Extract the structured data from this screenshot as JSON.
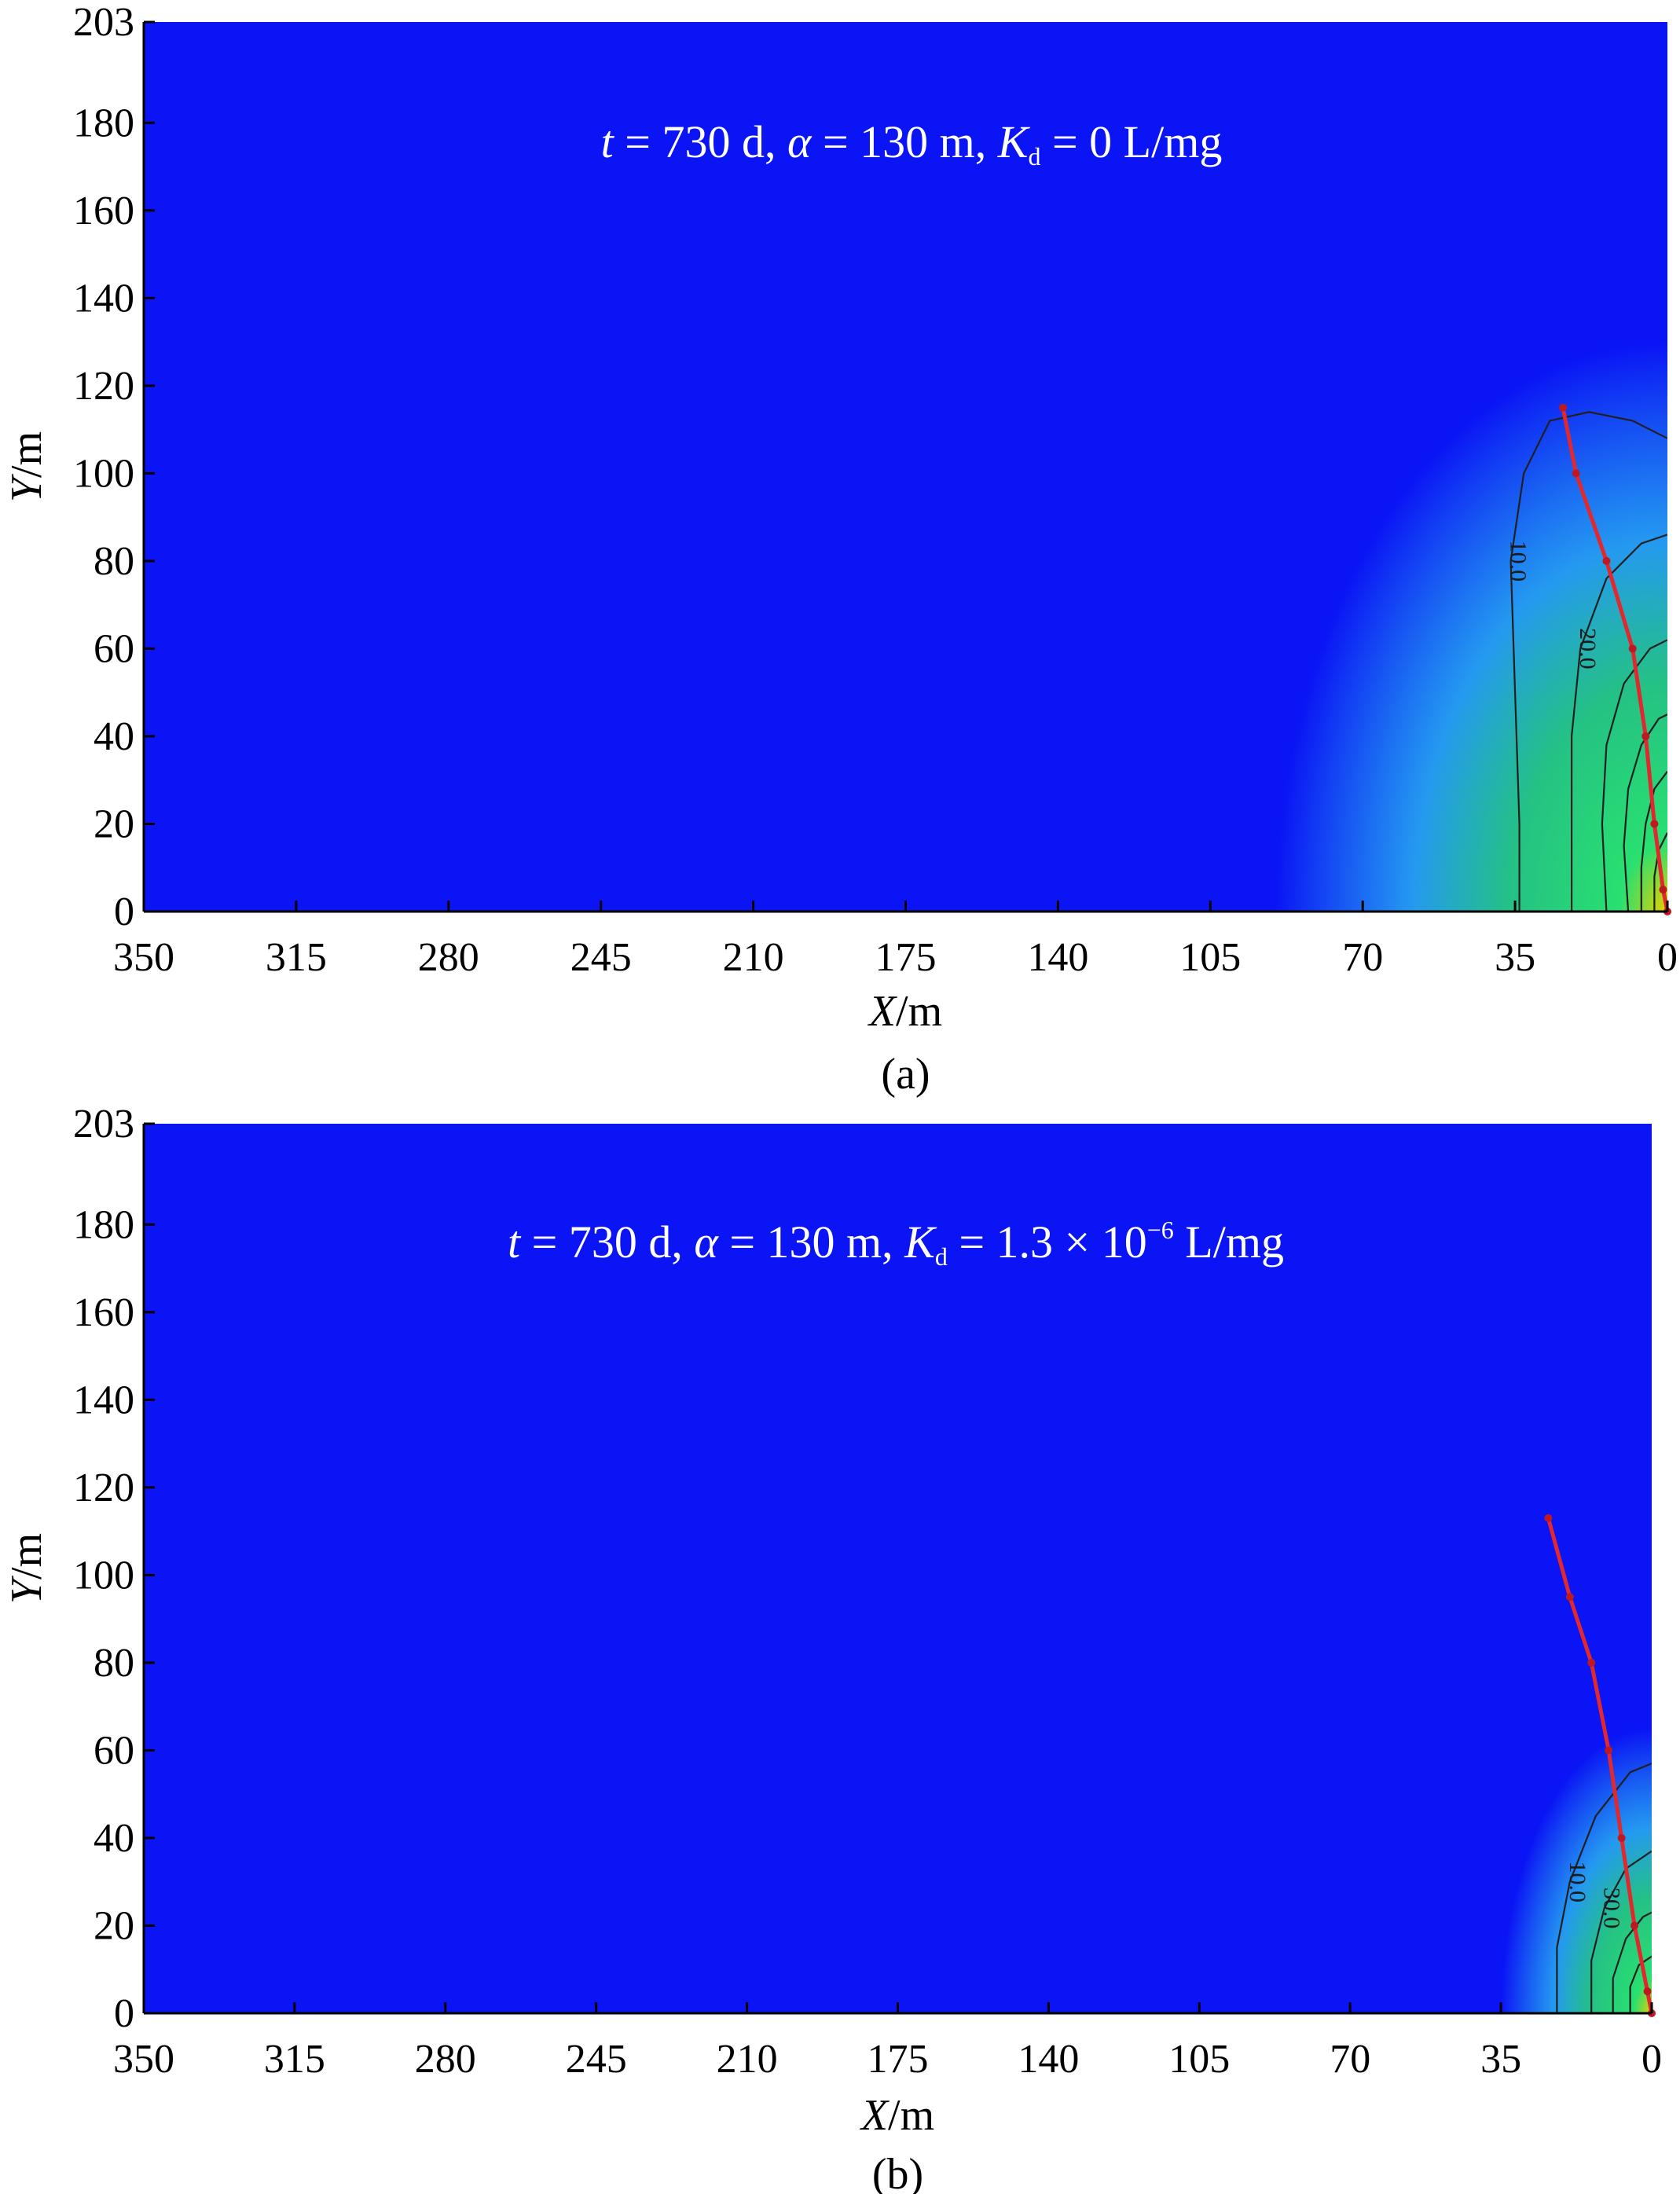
{
  "chart_data": [
    {
      "type": "heatmap",
      "panel_label": "(a)",
      "annotation": {
        "t_var": "t",
        "t_text": " = 730 d, ",
        "alpha_var": "α",
        "alpha_text": " = 130 m, ",
        "k_var": "K",
        "k_sub": "d",
        "k_text": " = 0 L/mg",
        "k_sup": ""
      },
      "xlabel": {
        "var": "X",
        "unit": "/m"
      },
      "ylabel": {
        "var": "Y",
        "unit": "/m"
      },
      "x_ticks": [
        "350",
        "315",
        "280",
        "245",
        "210",
        "175",
        "140",
        "105",
        "70",
        "35",
        "0"
      ],
      "y_ticks": [
        "0",
        "20",
        "40",
        "60",
        "80",
        "100",
        "120",
        "140",
        "160",
        "180",
        "203"
      ],
      "xlim": [
        350,
        0
      ],
      "ylim": [
        0,
        203
      ],
      "colors": {
        "background": "#0a14f5",
        "plume_mid": "#27a8f0",
        "plume_high": "#29e070",
        "plume_peak": "#e8d000",
        "path": "#e0282e"
      },
      "contour_labels": [
        "10.0",
        "10.0",
        "20.0",
        "10.0"
      ],
      "contours": [
        {
          "label": "10.0",
          "points": [
            [
              34,
              0
            ],
            [
              34,
              20
            ],
            [
              35,
              50
            ],
            [
              36,
              80
            ],
            [
              33,
              100
            ],
            [
              27,
              112
            ],
            [
              18,
              114
            ],
            [
              8,
              112
            ],
            [
              0,
              108
            ]
          ]
        },
        {
          "label": "20.0",
          "points": [
            [
              22,
              0
            ],
            [
              22,
              20
            ],
            [
              22,
              40
            ],
            [
              20,
              60
            ],
            [
              14,
              76
            ],
            [
              6,
              84
            ],
            [
              0,
              86
            ]
          ]
        },
        {
          "label": "",
          "points": [
            [
              14,
              0
            ],
            [
              15,
              20
            ],
            [
              14,
              38
            ],
            [
              10,
              52
            ],
            [
              4,
              60
            ],
            [
              0,
              62
            ]
          ]
        },
        {
          "label": "",
          "points": [
            [
              9,
              0
            ],
            [
              10,
              15
            ],
            [
              9,
              28
            ],
            [
              6,
              38
            ],
            [
              2,
              44
            ],
            [
              0,
              45
            ]
          ]
        },
        {
          "label": "",
          "points": [
            [
              6,
              0
            ],
            [
              6,
              10
            ],
            [
              5,
              20
            ],
            [
              3,
              28
            ],
            [
              0,
              32
            ]
          ]
        },
        {
          "label": "",
          "points": [
            [
              3,
              0
            ],
            [
              3,
              8
            ],
            [
              2,
              14
            ],
            [
              0,
              18
            ]
          ]
        }
      ],
      "path": [
        [
          24,
          115
        ],
        [
          21,
          100
        ],
        [
          14,
          80
        ],
        [
          8,
          60
        ],
        [
          5,
          40
        ],
        [
          3,
          20
        ],
        [
          1,
          5
        ],
        [
          0,
          0
        ]
      ],
      "plume": {
        "x_extent": 90,
        "y_extent": 130
      }
    },
    {
      "type": "heatmap",
      "panel_label": "(b)",
      "annotation": {
        "t_var": "t",
        "t_text": " = 730 d, ",
        "alpha_var": "α",
        "alpha_text": " = 130 m, ",
        "k_var": "K",
        "k_sub": "d",
        "k_text": " = 1.3 × 10",
        "k_sup": "−6",
        "k_tail": " L/mg"
      },
      "xlabel": {
        "var": "X",
        "unit": "/m"
      },
      "ylabel": {
        "var": "Y",
        "unit": "/m"
      },
      "x_ticks": [
        "350",
        "315",
        "280",
        "245",
        "210",
        "175",
        "140",
        "105",
        "70",
        "35",
        "0"
      ],
      "y_ticks": [
        "0",
        "20",
        "40",
        "60",
        "80",
        "100",
        "120",
        "140",
        "160",
        "180",
        "203"
      ],
      "xlim": [
        350,
        0
      ],
      "ylim": [
        0,
        203
      ],
      "colors": {
        "background": "#0a14f5",
        "plume_mid": "#27a8f0",
        "plume_high": "#29e070",
        "plume_peak": "#e8d000",
        "path": "#e0282e"
      },
      "contour_labels": [
        "10.0",
        "30.0"
      ],
      "contours": [
        {
          "label": "10.0",
          "points": [
            [
              22,
              0
            ],
            [
              22,
              15
            ],
            [
              19,
              30
            ],
            [
              13,
              45
            ],
            [
              5,
              55
            ],
            [
              0,
              57
            ]
          ]
        },
        {
          "label": "30.0",
          "points": [
            [
              14,
              0
            ],
            [
              14,
              12
            ],
            [
              11,
              24
            ],
            [
              6,
              33
            ],
            [
              0,
              37
            ]
          ]
        },
        {
          "label": "",
          "points": [
            [
              9,
              0
            ],
            [
              9,
              8
            ],
            [
              6,
              17
            ],
            [
              2,
              22
            ],
            [
              0,
              23
            ]
          ]
        },
        {
          "label": "",
          "points": [
            [
              5,
              0
            ],
            [
              5,
              6
            ],
            [
              3,
              11
            ],
            [
              0,
              13
            ]
          ]
        }
      ],
      "path": [
        [
          24,
          113
        ],
        [
          19,
          95
        ],
        [
          14,
          80
        ],
        [
          10,
          60
        ],
        [
          7,
          40
        ],
        [
          4,
          20
        ],
        [
          1,
          5
        ],
        [
          0,
          0
        ]
      ],
      "plume": {
        "x_extent": 35,
        "y_extent": 65
      }
    }
  ]
}
